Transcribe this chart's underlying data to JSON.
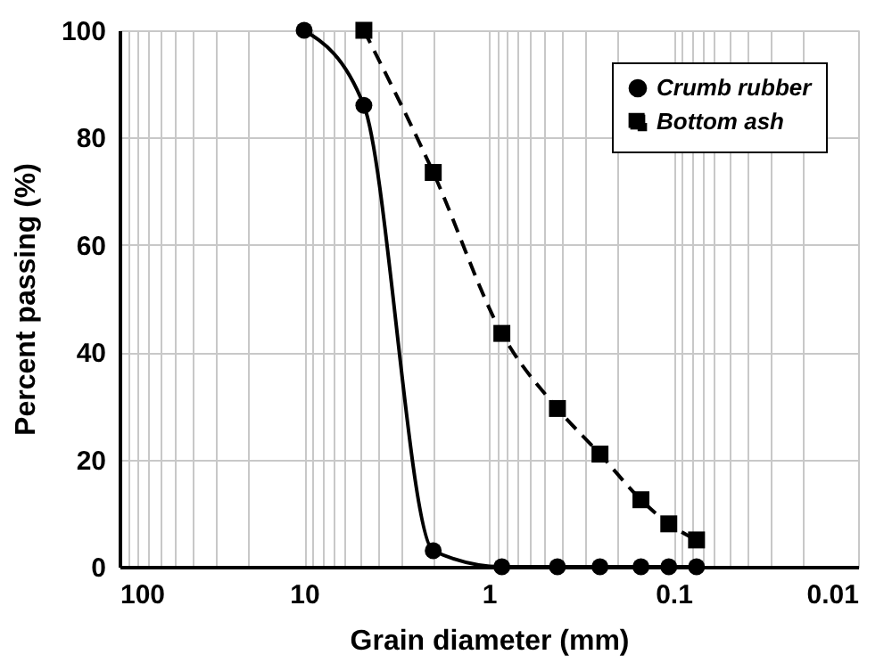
{
  "chart_data": {
    "type": "line",
    "xlabel": "Grain diameter (mm)",
    "ylabel": "Percent passing (%)",
    "log": "x",
    "xlim": [
      100,
      0.01
    ],
    "ylim": [
      0,
      100
    ],
    "yticks": [
      0,
      20,
      40,
      60,
      80,
      100
    ],
    "xticks": [
      100,
      {
        "value": 90,
        "label": null
      },
      {
        "value": 80,
        "label": null
      },
      {
        "value": 70,
        "label": null
      },
      {
        "value": 60,
        "label": null
      },
      {
        "value": 50,
        "label": null
      },
      {
        "value": 40,
        "label": null
      },
      {
        "value": 30,
        "label": null
      },
      {
        "value": 20,
        "label": null
      },
      10,
      {
        "value": 9,
        "label": null
      },
      {
        "value": 8,
        "label": null
      },
      {
        "value": 7,
        "label": null
      },
      {
        "value": 6,
        "label": null
      },
      {
        "value": 5,
        "label": null
      },
      {
        "value": 4,
        "label": null
      },
      {
        "value": 3,
        "label": null
      },
      {
        "value": 2,
        "label": null
      },
      1,
      {
        "value": 0.9,
        "label": null
      },
      {
        "value": 0.8,
        "label": null
      },
      {
        "value": 0.7,
        "label": null
      },
      {
        "value": 0.6,
        "label": null
      },
      {
        "value": 0.5,
        "label": null
      },
      {
        "value": 0.4,
        "label": null
      },
      {
        "value": 0.3,
        "label": null
      },
      {
        "value": 0.2,
        "label": null
      },
      0.1,
      {
        "value": 0.09,
        "label": null
      },
      {
        "value": 0.08,
        "label": null
      },
      {
        "value": 0.07,
        "label": null
      },
      {
        "value": 0.06,
        "label": null
      },
      {
        "value": 0.05,
        "label": null
      },
      {
        "value": 0.04,
        "label": null
      },
      {
        "value": 0.03,
        "label": null
      },
      {
        "value": 0.02,
        "label": null
      },
      0.01
    ],
    "grid": true,
    "legend": "top right",
    "series": [
      {
        "name": "Crumb rubber",
        "color": "#000000",
        "marker": "circle",
        "line_style": "solid",
        "x": [
          10,
          4.75,
          2.0,
          0.85,
          0.425,
          0.25,
          0.15,
          0.106,
          0.075
        ],
        "values": [
          100,
          86,
          3,
          0,
          0,
          0,
          0,
          0,
          0
        ]
      },
      {
        "name": "Bottom ash",
        "color": "#000000",
        "marker": "square",
        "line_style": "dashed",
        "x": [
          4.75,
          2.0,
          0.85,
          0.425,
          0.25,
          0.15,
          0.106,
          0.075
        ],
        "values": [
          100,
          73.5,
          43.5,
          29.5,
          21,
          12.5,
          8,
          5
        ]
      }
    ]
  }
}
